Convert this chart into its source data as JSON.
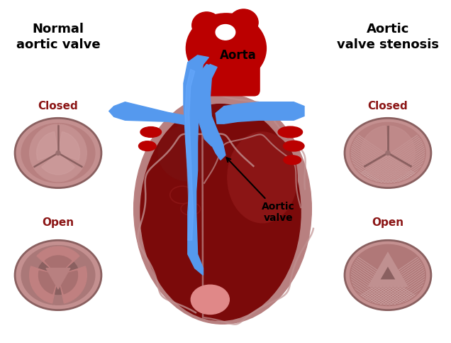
{
  "bg_color": "#ffffff",
  "title_left": "Normal\naortic valve",
  "title_right": "Aortic\nvalve stenosis",
  "label_closed": "Closed",
  "label_open": "Open",
  "label_aorta": "Aorta",
  "label_aortic_valve": "Aortic\nvalve",
  "aorta_red": "#CC1111",
  "aorta_red2": "#BB0000",
  "heart_dark": "#7B0A0A",
  "heart_outer": "#9B3030",
  "heart_peri": "#B07070",
  "blue1": "#5599EE",
  "blue2": "#3377CC",
  "blue3": "#6AABFF",
  "valve_rim": "#996666",
  "valve_outer": "#C08888",
  "valve_inner": "#B07878",
  "valve_petal": "#BF8888",
  "valve_line": "#7A5555",
  "valve_dark": "#956060",
  "stenosis_hatch": "#AA8080",
  "label_red": "#8B1515",
  "annot_color": "#000000"
}
